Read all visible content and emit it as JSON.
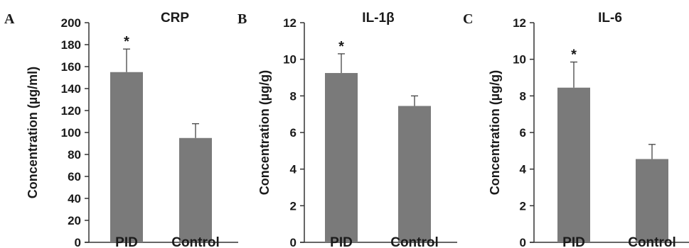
{
  "chart_data": [
    {
      "type": "bar",
      "panel": "A",
      "title": "CRP",
      "ylabel": "Concentration (µg/ml)",
      "ylim": [
        0,
        200
      ],
      "yticks": [
        0,
        20,
        40,
        60,
        80,
        100,
        120,
        140,
        160,
        180,
        200
      ],
      "categories": [
        "PID",
        "Control"
      ],
      "values": [
        155,
        95
      ],
      "error": [
        21,
        13
      ],
      "significance": [
        "*",
        ""
      ],
      "bar_color": "#7a7a7a"
    },
    {
      "type": "bar",
      "panel": "B",
      "title": "IL-1β",
      "ylabel": "Concentration (µg/g)",
      "ylim": [
        0,
        12
      ],
      "yticks": [
        0,
        2,
        4,
        6,
        8,
        10,
        12
      ],
      "categories": [
        "PID",
        "Control"
      ],
      "values": [
        9.25,
        7.45
      ],
      "error": [
        1.05,
        0.55
      ],
      "significance": [
        "*",
        ""
      ],
      "bar_color": "#7a7a7a"
    },
    {
      "type": "bar",
      "panel": "C",
      "title": "IL-6",
      "ylabel": "Concentration (µg/g)",
      "ylim": [
        0,
        12
      ],
      "yticks": [
        0,
        2,
        4,
        6,
        8,
        10,
        12
      ],
      "categories": [
        "PID",
        "Control"
      ],
      "values": [
        8.45,
        4.55
      ],
      "error": [
        1.4,
        0.8
      ],
      "significance": [
        "*",
        ""
      ],
      "bar_color": "#7a7a7a"
    }
  ]
}
